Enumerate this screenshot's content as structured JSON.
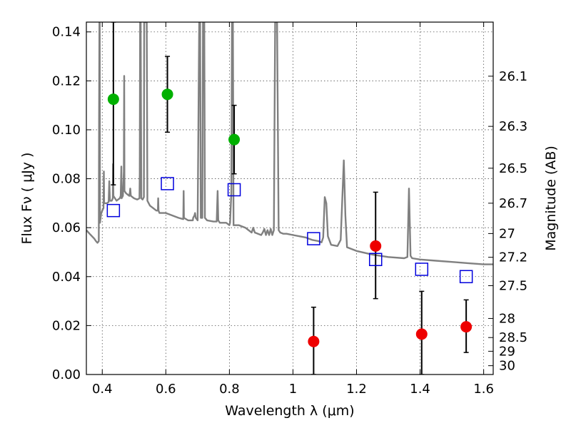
{
  "chart_data": {
    "type": "scatter",
    "xlabel": "Wavelength  λ (μm)",
    "ylabel_left": "Flux  Fν  ( μJy )",
    "ylabel_right": "Magnitude (AB)",
    "xlim": [
      0.35,
      1.63
    ],
    "ylim": [
      0.0,
      0.144
    ],
    "grid": true,
    "x_ticks": [
      {
        "value": 0.4,
        "label": "0.4"
      },
      {
        "value": 0.6,
        "label": "0.6"
      },
      {
        "value": 0.8,
        "label": "0.8"
      },
      {
        "value": 1.0,
        "label": "1"
      },
      {
        "value": 1.2,
        "label": "1.2"
      },
      {
        "value": 1.4,
        "label": "1.4"
      },
      {
        "value": 1.6,
        "label": "1.6"
      }
    ],
    "y_ticks": [
      {
        "value": 0.0,
        "label": "0.00"
      },
      {
        "value": 0.02,
        "label": "0.02"
      },
      {
        "value": 0.04,
        "label": "0.04"
      },
      {
        "value": 0.06,
        "label": "0.06"
      },
      {
        "value": 0.08,
        "label": "0.08"
      },
      {
        "value": 0.1,
        "label": "0.10"
      },
      {
        "value": 0.12,
        "label": "0.12"
      },
      {
        "value": 0.14,
        "label": "0.14"
      }
    ],
    "mag_ticks": [
      {
        "flux": 0.1219,
        "label": "26.1"
      },
      {
        "flux": 0.1014,
        "label": "26.3"
      },
      {
        "flux": 0.0843,
        "label": "26.5"
      },
      {
        "flux": 0.07,
        "label": "26.7"
      },
      {
        "flux": 0.0576,
        "label": "27"
      },
      {
        "flux": 0.0479,
        "label": "27.2"
      },
      {
        "flux": 0.0363,
        "label": "27.5"
      },
      {
        "flux": 0.0229,
        "label": "28"
      },
      {
        "flux": 0.0151,
        "label": "28.5"
      },
      {
        "flux": 0.0095,
        "label": "29"
      },
      {
        "flux": 0.0036,
        "label": "30"
      }
    ],
    "series": [
      {
        "name": "Green photometry",
        "color": "#00b000",
        "marker": "circle",
        "points": [
          {
            "x": 0.435,
            "y": 0.1125,
            "ylo": 0.0775,
            "yhi": 0.144
          },
          {
            "x": 0.605,
            "y": 0.1145,
            "ylo": 0.099,
            "yhi": 0.13
          },
          {
            "x": 0.815,
            "y": 0.096,
            "ylo": 0.082,
            "yhi": 0.11
          }
        ]
      },
      {
        "name": "Red photometry",
        "color": "#ee0000",
        "marker": "circle",
        "points": [
          {
            "x": 1.065,
            "y": 0.0135,
            "ylo": 0.0,
            "yhi": 0.0275
          },
          {
            "x": 1.26,
            "y": 0.0525,
            "ylo": 0.031,
            "yhi": 0.0745
          },
          {
            "x": 1.405,
            "y": 0.0165,
            "ylo": 0.0,
            "yhi": 0.034
          },
          {
            "x": 1.545,
            "y": 0.0195,
            "ylo": 0.009,
            "yhi": 0.0305
          }
        ]
      },
      {
        "name": "Model photometry",
        "color": "#0000dd",
        "marker": "open-square",
        "points": [
          {
            "x": 0.435,
            "y": 0.067
          },
          {
            "x": 0.605,
            "y": 0.078
          },
          {
            "x": 0.815,
            "y": 0.0755
          },
          {
            "x": 1.065,
            "y": 0.0555
          },
          {
            "x": 1.26,
            "y": 0.047
          },
          {
            "x": 1.405,
            "y": 0.043
          },
          {
            "x": 1.545,
            "y": 0.04
          }
        ]
      },
      {
        "name": "Model spectrum",
        "color": "#808080",
        "marker": "line",
        "points": [
          [
            0.35,
            0.059
          ],
          [
            0.36,
            0.0575
          ],
          [
            0.375,
            0.0555
          ],
          [
            0.38,
            0.0545
          ],
          [
            0.385,
            0.0538
          ],
          [
            0.389,
            0.0545
          ],
          [
            0.39,
            0.104
          ],
          [
            0.391,
            0.144
          ],
          [
            0.392,
            0.144
          ],
          [
            0.393,
            0.062
          ],
          [
            0.396,
            0.0655
          ],
          [
            0.4,
            0.067
          ],
          [
            0.404,
            0.068
          ],
          [
            0.405,
            0.083
          ],
          [
            0.406,
            0.07
          ],
          [
            0.415,
            0.07
          ],
          [
            0.42,
            0.0705
          ],
          [
            0.422,
            0.079
          ],
          [
            0.424,
            0.071
          ],
          [
            0.43,
            0.071
          ],
          [
            0.433,
            0.072
          ],
          [
            0.434,
            0.086
          ],
          [
            0.435,
            0.073
          ],
          [
            0.44,
            0.072
          ],
          [
            0.445,
            0.071
          ],
          [
            0.45,
            0.0715
          ],
          [
            0.455,
            0.072
          ],
          [
            0.458,
            0.073
          ],
          [
            0.46,
            0.085
          ],
          [
            0.461,
            0.072
          ],
          [
            0.465,
            0.073
          ],
          [
            0.468,
            0.083
          ],
          [
            0.469,
            0.122
          ],
          [
            0.47,
            0.075
          ],
          [
            0.475,
            0.074
          ],
          [
            0.485,
            0.073
          ],
          [
            0.487,
            0.0745
          ],
          [
            0.488,
            0.076
          ],
          [
            0.49,
            0.073
          ],
          [
            0.5,
            0.072
          ],
          [
            0.51,
            0.0715
          ],
          [
            0.517,
            0.072
          ],
          [
            0.518,
            0.082
          ],
          [
            0.519,
            0.144
          ],
          [
            0.521,
            0.144
          ],
          [
            0.523,
            0.072
          ],
          [
            0.527,
            0.0715
          ],
          [
            0.531,
            0.0725
          ],
          [
            0.532,
            0.144
          ],
          [
            0.534,
            0.144
          ],
          [
            0.537,
            0.144
          ],
          [
            0.54,
            0.144
          ],
          [
            0.542,
            0.071
          ],
          [
            0.55,
            0.069
          ],
          [
            0.56,
            0.068
          ],
          [
            0.57,
            0.067
          ],
          [
            0.575,
            0.067
          ],
          [
            0.576,
            0.072
          ],
          [
            0.577,
            0.067
          ],
          [
            0.58,
            0.066
          ],
          [
            0.6,
            0.066
          ],
          [
            0.62,
            0.065
          ],
          [
            0.64,
            0.064
          ],
          [
            0.655,
            0.0635
          ],
          [
            0.656,
            0.075
          ],
          [
            0.657,
            0.064
          ],
          [
            0.67,
            0.063
          ],
          [
            0.685,
            0.063
          ],
          [
            0.686,
            0.064
          ],
          [
            0.69,
            0.065
          ],
          [
            0.692,
            0.066
          ],
          [
            0.694,
            0.064
          ],
          [
            0.7,
            0.063
          ],
          [
            0.705,
            0.144
          ],
          [
            0.708,
            0.144
          ],
          [
            0.71,
            0.064
          ],
          [
            0.715,
            0.064
          ],
          [
            0.717,
            0.144
          ],
          [
            0.721,
            0.144
          ],
          [
            0.723,
            0.064
          ],
          [
            0.73,
            0.063
          ],
          [
            0.75,
            0.0625
          ],
          [
            0.76,
            0.0625
          ],
          [
            0.763,
            0.075
          ],
          [
            0.765,
            0.063
          ],
          [
            0.77,
            0.062
          ],
          [
            0.79,
            0.062
          ],
          [
            0.8,
            0.061
          ],
          [
            0.802,
            0.062
          ],
          [
            0.806,
            0.074
          ],
          [
            0.808,
            0.144
          ],
          [
            0.811,
            0.144
          ],
          [
            0.813,
            0.061
          ],
          [
            0.83,
            0.061
          ],
          [
            0.85,
            0.06
          ],
          [
            0.87,
            0.058
          ],
          [
            0.875,
            0.06
          ],
          [
            0.88,
            0.058
          ],
          [
            0.9,
            0.057
          ],
          [
            0.905,
            0.058
          ],
          [
            0.91,
            0.0595
          ],
          [
            0.915,
            0.057
          ],
          [
            0.92,
            0.059
          ],
          [
            0.925,
            0.057
          ],
          [
            0.93,
            0.0595
          ],
          [
            0.935,
            0.057
          ],
          [
            0.94,
            0.059
          ],
          [
            0.944,
            0.144
          ],
          [
            0.95,
            0.144
          ],
          [
            0.955,
            0.059
          ],
          [
            0.96,
            0.058
          ],
          [
            0.97,
            0.0575
          ],
          [
            0.98,
            0.0575
          ],
          [
            1.0,
            0.057
          ],
          [
            1.02,
            0.0565
          ],
          [
            1.04,
            0.056
          ],
          [
            1.05,
            0.0555
          ],
          [
            1.06,
            0.055
          ],
          [
            1.08,
            0.0545
          ],
          [
            1.09,
            0.054
          ],
          [
            1.095,
            0.056
          ],
          [
            1.1,
            0.0725
          ],
          [
            1.105,
            0.07
          ],
          [
            1.11,
            0.0565
          ],
          [
            1.12,
            0.053
          ],
          [
            1.14,
            0.0525
          ],
          [
            1.15,
            0.055
          ],
          [
            1.16,
            0.0875
          ],
          [
            1.165,
            0.065
          ],
          [
            1.17,
            0.052
          ],
          [
            1.2,
            0.0505
          ],
          [
            1.25,
            0.049
          ],
          [
            1.3,
            0.048
          ],
          [
            1.35,
            0.0475
          ],
          [
            1.36,
            0.048
          ],
          [
            1.365,
            0.076
          ],
          [
            1.37,
            0.0485
          ],
          [
            1.375,
            0.0475
          ],
          [
            1.4,
            0.047
          ],
          [
            1.45,
            0.0465
          ],
          [
            1.5,
            0.046
          ],
          [
            1.55,
            0.0455
          ],
          [
            1.6,
            0.045
          ],
          [
            1.63,
            0.045
          ]
        ]
      }
    ]
  }
}
